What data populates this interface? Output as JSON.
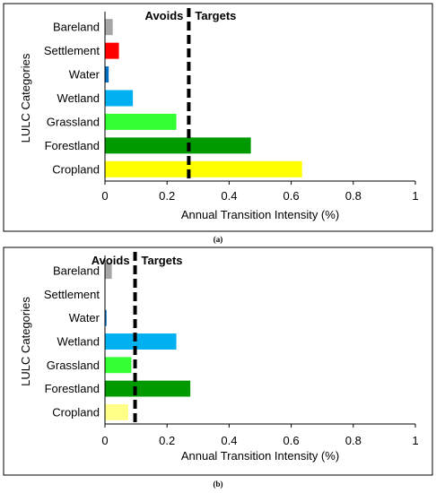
{
  "chart_data": [
    {
      "type": "bar",
      "orientation": "horizontal",
      "panel_label": "(a)",
      "categories": [
        "Bareland",
        "Settlement",
        "Water",
        "Wetland",
        "Grassland",
        "Forestland",
        "Cropland"
      ],
      "values": [
        0.025,
        0.045,
        0.012,
        0.09,
        0.23,
        0.47,
        0.635
      ],
      "colors": [
        "#a6a6a6",
        "#ff0000",
        "#0070c0",
        "#00b0f0",
        "#33ff33",
        "#009900",
        "#ffff00"
      ],
      "threshold": 0.27,
      "annotations": {
        "left": "Avoids",
        "right": "Targets"
      },
      "xlabel": "Annual Transition Intensity (%)",
      "ylabel": "LULC Categories",
      "xlim": [
        0,
        1
      ],
      "xticks": [
        "0",
        "0.2",
        "0.4",
        "0.6",
        "0.8",
        "1"
      ],
      "grid": false
    },
    {
      "type": "bar",
      "orientation": "horizontal",
      "panel_label": "(b)",
      "categories": [
        "Bareland",
        "Settlement",
        "Water",
        "Wetland",
        "Grassland",
        "Forestland",
        "Cropland"
      ],
      "values": [
        0.022,
        0.0,
        0.005,
        0.23,
        0.085,
        0.275,
        0.075
      ],
      "colors": [
        "#a6a6a6",
        "#ff0000",
        "#0070c0",
        "#00b0f0",
        "#33ff33",
        "#009900",
        "#ffff88"
      ],
      "threshold": 0.097,
      "annotations": {
        "left": "Avoids",
        "right": "Targets"
      },
      "xlabel": "Annual Transition Intensity (%)",
      "ylabel": "LULC Categories",
      "xlim": [
        0,
        1
      ],
      "xticks": [
        "0",
        "0.2",
        "0.4",
        "0.6",
        "0.8",
        "1"
      ],
      "grid": false
    }
  ]
}
